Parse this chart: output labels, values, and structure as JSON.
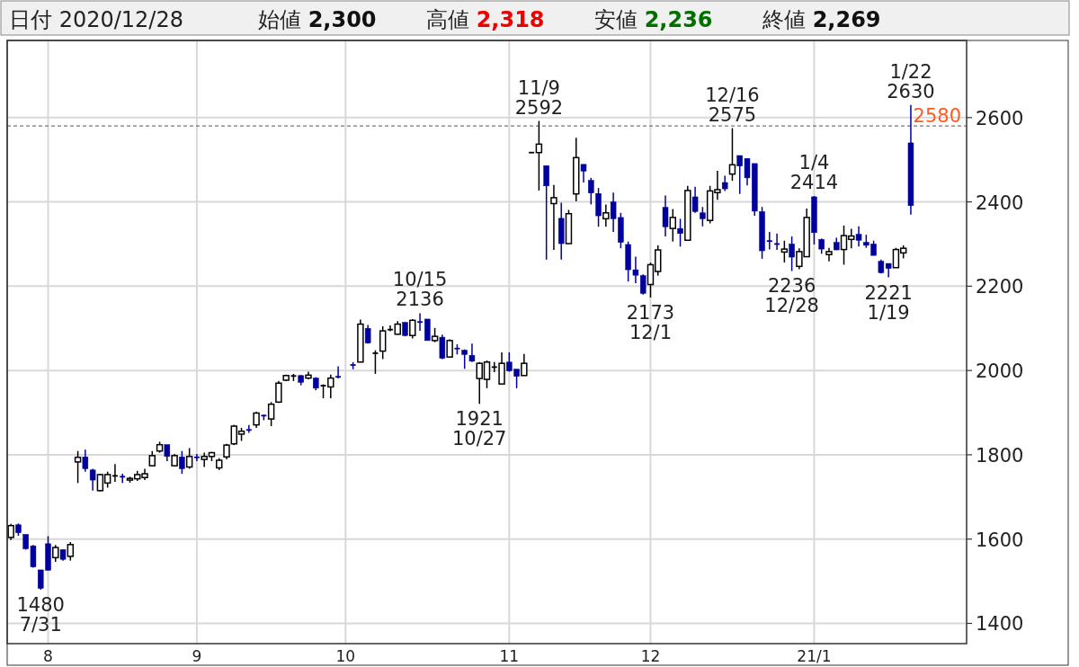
{
  "chart_data": {
    "type": "candlestick",
    "title": "日付 2020/12/28",
    "annotations": [
      "始値 **2,300**",
      "高値 **2,318**",
      "安値 **2,236**",
      "終値 **2,269**",
      {
        "text": "1480 7/31",
        "y": 1480
      },
      {
        "text": "10/15 2136",
        "y": 2136
      },
      {
        "text": "1921 10/27",
        "y": 1921
      },
      {
        "text": "11/9 2592",
        "y": 2592
      },
      {
        "text": "2173 12/1",
        "y": 2173
      },
      {
        "text": "12/16 2575",
        "y": 2575
      },
      {
        "text": "2236 12/28",
        "y": 2236
      },
      {
        "text": "1/4 2414",
        "y": 2414
      },
      {
        "text": "2221 1/19",
        "y": 2221
      },
      {
        "text": "1/22 2630",
        "y": 2630
      }
    ],
    "categories": [
      null,
      null,
      null,
      null,
      null,
      "8",
      null,
      null,
      null,
      null,
      null,
      null,
      null,
      null,
      null,
      null,
      null,
      null,
      null,
      null,
      null,
      null,
      null,
      null,
      null,
      "9",
      null,
      null,
      null,
      null,
      null,
      null,
      null,
      null,
      null,
      null,
      null,
      null,
      null,
      null,
      null,
      null,
      null,
      null,
      null,
      "10",
      null,
      null,
      null,
      null,
      null,
      null,
      null,
      null,
      null,
      null,
      null,
      null,
      null,
      null,
      null,
      null,
      null,
      null,
      null,
      null,
      null,
      "11",
      null,
      null,
      null,
      null,
      null,
      null,
      null,
      null,
      null,
      null,
      null,
      null,
      null,
      null,
      null,
      null,
      null,
      null,
      "12",
      null,
      null,
      null,
      null,
      null,
      null,
      null,
      null,
      null,
      null,
      null,
      null,
      null,
      null,
      null,
      null,
      null,
      null,
      null,
      null,
      null,
      "21/1",
      null,
      null,
      null,
      null,
      null,
      null,
      null,
      null,
      null,
      null,
      null,
      null,
      null
    ],
    "ohlc": [
      [
        1604,
        1636,
        1598,
        1632
      ],
      [
        1634,
        1637,
        1608,
        1615
      ],
      [
        1611,
        1611,
        1575,
        1577
      ],
      [
        1584,
        1586,
        1532,
        1534
      ],
      [
        1527,
        1527,
        1480,
        1483
      ],
      [
        1589,
        1607,
        1526,
        1526
      ],
      [
        1556,
        1586,
        1546,
        1580
      ],
      [
        1575,
        1575,
        1549,
        1552
      ],
      [
        1559,
        1593,
        1549,
        1587
      ],
      [
        1783,
        1809,
        1733,
        1794
      ],
      [
        1795,
        1812,
        1760,
        1767
      ],
      [
        1764,
        1767,
        1715,
        1740
      ],
      [
        1715,
        1755,
        1713,
        1753
      ],
      [
        1733,
        1760,
        1722,
        1753
      ],
      [
        1749,
        1778,
        1736,
        1750
      ],
      [
        1748,
        1755,
        1733,
        1745
      ],
      [
        1740,
        1748,
        1734,
        1744
      ],
      [
        1743,
        1762,
        1738,
        1753
      ],
      [
        1746,
        1767,
        1740,
        1755
      ],
      [
        1774,
        1809,
        1773,
        1798
      ],
      [
        1809,
        1831,
        1805,
        1824
      ],
      [
        1824,
        1824,
        1785,
        1796
      ],
      [
        1774,
        1802,
        1773,
        1798
      ],
      [
        1795,
        1809,
        1755,
        1767
      ],
      [
        1771,
        1816,
        1767,
        1796
      ],
      [
        1794,
        1802,
        1785,
        1791
      ],
      [
        1789,
        1805,
        1771,
        1796
      ],
      [
        1796,
        1807,
        1785,
        1805
      ],
      [
        1769,
        1792,
        1764,
        1787
      ],
      [
        1795,
        1826,
        1789,
        1823
      ],
      [
        1826,
        1871,
        1823,
        1868
      ],
      [
        1849,
        1864,
        1833,
        1856
      ],
      [
        1859,
        1871,
        1852,
        1856
      ],
      [
        1871,
        1902,
        1864,
        1899
      ],
      [
        1893,
        1895,
        1882,
        1891
      ],
      [
        1885,
        1925,
        1868,
        1920
      ],
      [
        1925,
        1975,
        1923,
        1970
      ],
      [
        1977,
        1990,
        1975,
        1988
      ],
      [
        1985,
        1992,
        1975,
        1987
      ],
      [
        1988,
        1989,
        1965,
        1972
      ],
      [
        1982,
        1997,
        1979,
        1989
      ],
      [
        1982,
        1984,
        1953,
        1958
      ],
      [
        1962,
        1967,
        1934,
        1964
      ],
      [
        1961,
        1990,
        1934,
        1982
      ],
      [
        1985,
        2010,
        1981,
        1982
      ],
      null,
      [
        2013,
        2020,
        2003,
        2010
      ],
      [
        2020,
        2121,
        2020,
        2110
      ],
      [
        2100,
        2108,
        2064,
        2065
      ],
      [
        2038,
        2048,
        1992,
        2041
      ],
      [
        2046,
        2105,
        2027,
        2094
      ],
      [
        2095,
        2107,
        2093,
        2097
      ],
      [
        2086,
        2117,
        2085,
        2110
      ],
      [
        2114,
        2115,
        2081,
        2083
      ],
      [
        2083,
        2122,
        2076,
        2119
      ],
      [
        2115,
        2136,
        2094,
        2113
      ],
      [
        2122,
        2122,
        2071,
        2071
      ],
      [
        2071,
        2101,
        2067,
        2081
      ],
      [
        2079,
        2085,
        2027,
        2029
      ],
      [
        2032,
        2074,
        2031,
        2071
      ],
      [
        2052,
        2062,
        2038,
        2050
      ],
      [
        2048,
        2050,
        2004,
        2038
      ],
      [
        2036,
        2064,
        2020,
        2022
      ],
      [
        1981,
        2020,
        1921,
        2017
      ],
      [
        1979,
        2024,
        1958,
        2020
      ],
      [
        2006,
        2020,
        1996,
        2008
      ],
      [
        1968,
        2043,
        1968,
        2017
      ],
      [
        2020,
        2043,
        1997,
        1999
      ],
      [
        2003,
        2003,
        1958,
        1986
      ],
      [
        1988,
        2039,
        1988,
        2017
      ],
      [
        2517,
        2517,
        2517,
        2517
      ],
      [
        2517,
        2592,
        2427,
        2537
      ],
      [
        2486,
        2486,
        2263,
        2438
      ],
      [
        2396,
        2440,
        2286,
        2410
      ],
      [
        2361,
        2398,
        2263,
        2301
      ],
      [
        2301,
        2381,
        2301,
        2372
      ],
      [
        2419,
        2552,
        2401,
        2505
      ],
      [
        2489,
        2489,
        2446,
        2473
      ],
      [
        2451,
        2457,
        2394,
        2421
      ],
      [
        2420,
        2433,
        2341,
        2367
      ],
      [
        2360,
        2394,
        2341,
        2374
      ],
      [
        2400,
        2422,
        2329,
        2360
      ],
      [
        2363,
        2374,
        2290,
        2304
      ],
      [
        2299,
        2306,
        2211,
        2239
      ],
      [
        2239,
        2270,
        2207,
        2226
      ],
      [
        2225,
        2228,
        2180,
        2183
      ],
      [
        2204,
        2256,
        2173,
        2251
      ],
      [
        2235,
        2297,
        2225,
        2286
      ],
      [
        2387,
        2415,
        2318,
        2341
      ],
      [
        2337,
        2383,
        2306,
        2363
      ],
      [
        2337,
        2360,
        2294,
        2325
      ],
      [
        2309,
        2438,
        2309,
        2427
      ],
      [
        2412,
        2436,
        2374,
        2377
      ],
      [
        2374,
        2388,
        2342,
        2360
      ],
      [
        2356,
        2438,
        2349,
        2426
      ],
      [
        2422,
        2474,
        2405,
        2429
      ],
      [
        2446,
        2462,
        2426,
        2431
      ],
      [
        2466,
        2575,
        2450,
        2488
      ],
      [
        2510,
        2510,
        2419,
        2485
      ],
      [
        2503,
        2503,
        2439,
        2457
      ],
      [
        2491,
        2491,
        2367,
        2378
      ],
      [
        2377,
        2388,
        2265,
        2284
      ],
      [
        2307,
        2329,
        2287,
        2304
      ],
      [
        2300,
        2325,
        2286,
        2297
      ],
      [
        2281,
        2308,
        2256,
        2288
      ],
      [
        2300,
        2318,
        2236,
        2269
      ],
      [
        2247,
        2290,
        2240,
        2282
      ],
      [
        2270,
        2384,
        2270,
        2363
      ],
      [
        2412,
        2414,
        2299,
        2327
      ],
      [
        2311,
        2313,
        2277,
        2288
      ],
      [
        2275,
        2291,
        2259,
        2282
      ],
      [
        2304,
        2315,
        2286,
        2286
      ],
      [
        2287,
        2344,
        2251,
        2320
      ],
      [
        2311,
        2336,
        2290,
        2319
      ],
      [
        2323,
        2342,
        2294,
        2309
      ],
      [
        2304,
        2322,
        2291,
        2297
      ],
      [
        2300,
        2308,
        2273,
        2273
      ],
      [
        2259,
        2263,
        2230,
        2232
      ],
      [
        2254,
        2254,
        2221,
        2242
      ],
      [
        2244,
        2291,
        2244,
        2287
      ],
      [
        2279,
        2297,
        2266,
        2290
      ],
      [
        2540,
        2630,
        2370,
        2391
      ]
    ],
    "ylim": [
      1352,
      2783
    ],
    "yticks": [
      1400,
      1600,
      1800,
      2000,
      2200,
      2400,
      2600
    ],
    "ref_lines": [
      {
        "axis": "y",
        "value": 2580,
        "label": "2580",
        "line_style": "dashed"
      }
    ],
    "grid": true
  }
}
